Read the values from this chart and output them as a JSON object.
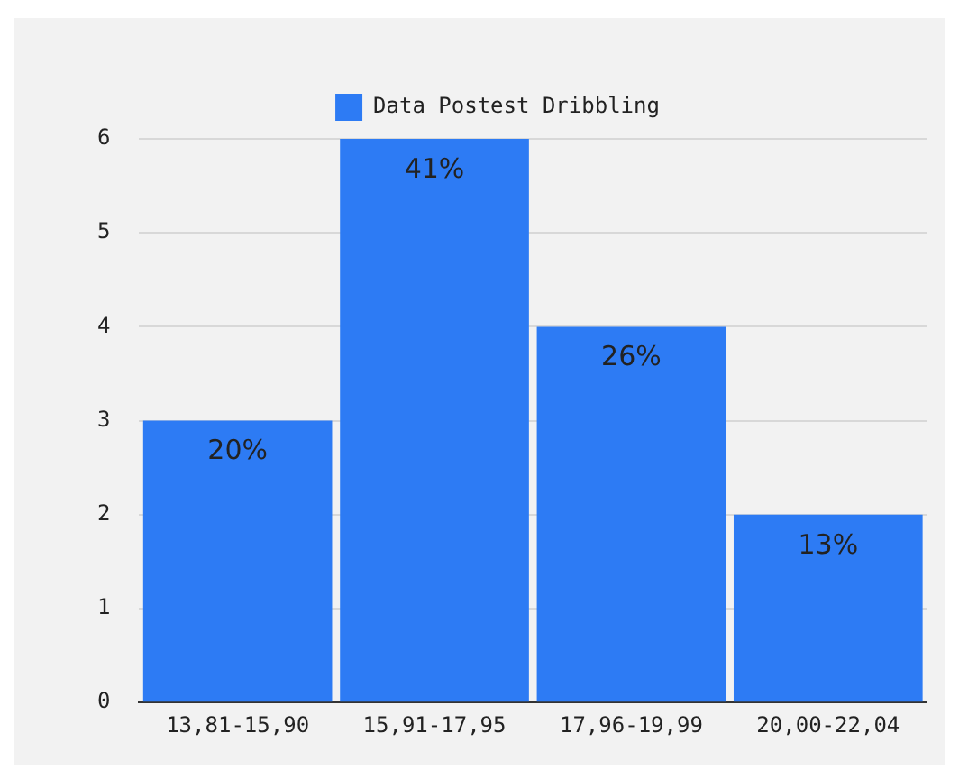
{
  "chart_data": {
    "type": "bar",
    "categories": [
      "13,81-15,90",
      "15,91-17,95",
      "17,96-19,99",
      "20,00-22,04"
    ],
    "series": [
      {
        "name": "Data Postest Dribbling",
        "color": "#2d7bf4",
        "values": [
          3,
          6,
          4,
          2
        ]
      }
    ],
    "annotations": [
      {
        "text": "20%",
        "x": "13,81-15,90",
        "y": 3
      },
      {
        "text": "41%",
        "x": "15,91-17,95",
        "y": 6
      },
      {
        "text": "26%",
        "x": "17,96-19,99",
        "y": 4
      },
      {
        "text": "13%",
        "x": "20,00-22,04",
        "y": 2
      }
    ],
    "ylim": [
      0,
      6
    ],
    "yticks": [
      0,
      1,
      2,
      3,
      4,
      5,
      6
    ],
    "grid": "y",
    "legend": "top"
  }
}
